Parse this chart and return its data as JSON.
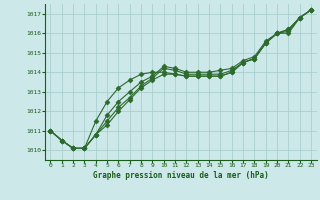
{
  "title": "Graphe pression niveau de la mer (hPa)",
  "x": [
    0,
    1,
    2,
    3,
    4,
    5,
    6,
    7,
    8,
    9,
    10,
    11,
    12,
    13,
    14,
    15,
    16,
    17,
    18,
    19,
    20,
    21,
    22,
    23
  ],
  "series": [
    [
      1011.0,
      1010.5,
      1010.1,
      1010.1,
      1010.8,
      1011.3,
      1012.0,
      1012.6,
      1013.2,
      1013.6,
      1013.9,
      1013.9,
      1013.8,
      1013.8,
      1013.8,
      1013.8,
      1014.0,
      1014.5,
      1014.7,
      1015.5,
      1016.0,
      1016.1,
      1016.8,
      1017.2
    ],
    [
      1011.0,
      1010.5,
      1010.1,
      1010.1,
      1010.8,
      1011.5,
      1012.2,
      1012.7,
      1013.3,
      1013.7,
      1014.2,
      1014.1,
      1013.9,
      1013.9,
      1013.9,
      1013.9,
      1014.1,
      1014.5,
      1014.7,
      1015.5,
      1016.0,
      1016.2,
      1016.8,
      1017.2
    ],
    [
      1011.0,
      1010.5,
      1010.1,
      1010.1,
      1010.8,
      1011.8,
      1012.5,
      1013.0,
      1013.5,
      1013.8,
      1014.3,
      1014.2,
      1014.0,
      1014.0,
      1014.0,
      1014.1,
      1014.2,
      1014.6,
      1014.8,
      1015.6,
      1016.0,
      1016.2,
      1016.8,
      1017.2
    ],
    [
      1011.0,
      1010.5,
      1010.1,
      1010.1,
      1011.5,
      1012.5,
      1013.2,
      1013.6,
      1013.9,
      1014.0,
      1014.0,
      1013.9,
      1013.8,
      1013.8,
      1013.8,
      1013.8,
      1014.0,
      1014.5,
      1014.7,
      1015.5,
      1016.0,
      1016.0,
      1016.8,
      1017.2
    ]
  ],
  "line_color": "#2d6a2d",
  "marker": "D",
  "marker_size": 2.5,
  "bg_color": "#cce8e8",
  "grid_color": "#aacece",
  "text_color": "#1a5c1a",
  "ylim": [
    1009.5,
    1017.5
  ],
  "yticks": [
    1010,
    1011,
    1012,
    1013,
    1014,
    1015,
    1016,
    1017
  ],
  "xlim": [
    -0.5,
    23.5
  ],
  "xticks": [
    0,
    1,
    2,
    3,
    4,
    5,
    6,
    7,
    8,
    9,
    10,
    11,
    12,
    13,
    14,
    15,
    16,
    17,
    18,
    19,
    20,
    21,
    22,
    23
  ]
}
